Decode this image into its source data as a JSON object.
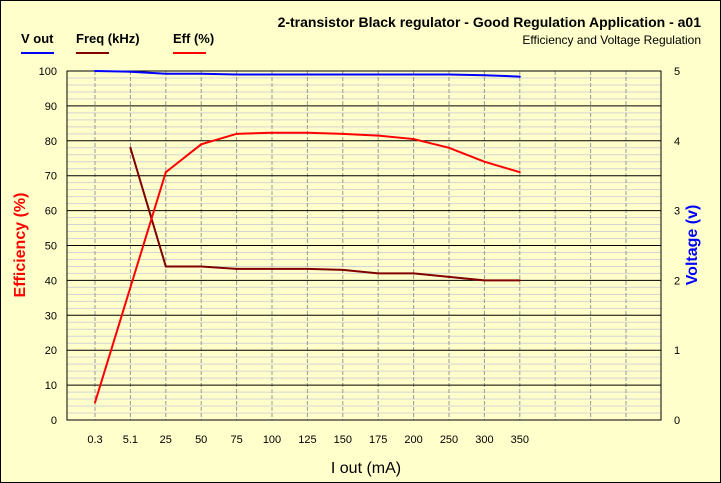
{
  "chart_data": {
    "type": "line",
    "title": "2-transistor Black regulator  - Good Regulation Application - a01",
    "subtitle": "Efficiency and Voltage Regulation",
    "xlabel": "I out (mA)",
    "ylabel": "Efficiency (%)",
    "y2label": "Voltage (v)",
    "categories": [
      "0.3",
      "5.1",
      "25",
      "50",
      "75",
      "100",
      "125",
      "150",
      "175",
      "200",
      "250",
      "300",
      "350"
    ],
    "ylim": [
      0,
      100
    ],
    "y2lim": [
      0,
      5
    ],
    "yticks": [
      0,
      10,
      20,
      30,
      40,
      50,
      60,
      70,
      80,
      90,
      100
    ],
    "y2ticks": [
      0,
      1,
      2,
      3,
      4,
      5
    ],
    "grid": true,
    "legend_position": "top-left",
    "series": [
      {
        "name": "V out",
        "axis": "right",
        "color": "#0000ff",
        "values": [
          5.0,
          4.99,
          4.96,
          4.96,
          4.95,
          4.95,
          4.95,
          4.95,
          4.95,
          4.95,
          4.95,
          4.94,
          4.92
        ]
      },
      {
        "name": "Freq  (kHz)",
        "axis": "left",
        "color": "#800000",
        "values": [
          null,
          78,
          44,
          44,
          43.3,
          43.3,
          43.3,
          43,
          42,
          42,
          41,
          40,
          40
        ]
      },
      {
        "name": "Eff  (%)",
        "axis": "left",
        "color": "#ff0000",
        "values": [
          5,
          38,
          71,
          79,
          82,
          82.3,
          82.3,
          82,
          81.5,
          80.5,
          78,
          74,
          71
        ]
      }
    ]
  },
  "colors": {
    "bg": "#ffffcc",
    "left_axis": "#ff0000",
    "right_axis": "#0000ff"
  }
}
